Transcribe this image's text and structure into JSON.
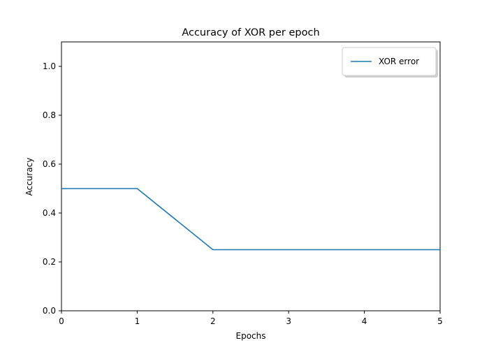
{
  "chart_data": {
    "type": "line",
    "title": "Accuracy of XOR per epoch",
    "xlabel": "Epochs",
    "ylabel": "Accuracy",
    "xlim": [
      0,
      5
    ],
    "ylim": [
      0,
      1.1
    ],
    "xticks": [
      "0",
      "1",
      "2",
      "3",
      "4",
      "5"
    ],
    "yticks": [
      "0.0",
      "0.2",
      "0.4",
      "0.6",
      "0.8",
      "1.0"
    ],
    "grid": false,
    "legend_position": "top-right",
    "series": [
      {
        "name": "XOR error",
        "color": "#1f77b4",
        "x": [
          0,
          1,
          2,
          3,
          4,
          5
        ],
        "y": [
          0.5,
          0.5,
          0.25,
          0.25,
          0.25,
          0.25
        ]
      }
    ]
  }
}
